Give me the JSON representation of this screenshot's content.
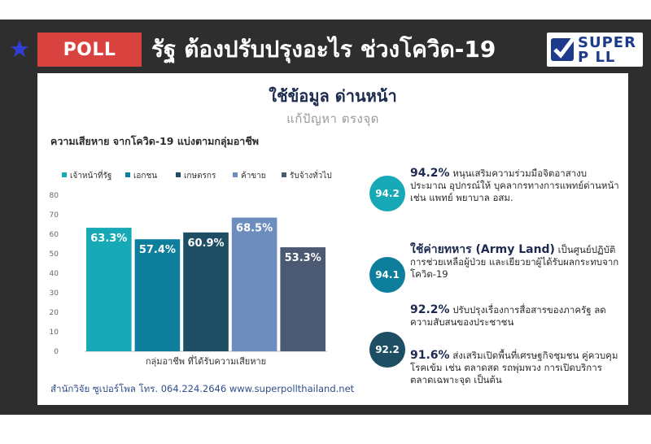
{
  "header": {
    "badge": "POLL",
    "headline": "รัฐ ต้องปรับปรุงอะไร ช่วงโควิด-19",
    "logo_top": "SUPER",
    "logo_bottom": "P LL"
  },
  "panel": {
    "title": "ใช้ข้อมูล ด่านหน้า",
    "subtitle": "แก้ปัญหา ตรงจุด",
    "chart_title": "ความเสียหาย จากโควิด-19 แบ่งตามกลุ่มอาชีพ",
    "source": "สำนักวิจัย ซูเปอร์โพล โทร. 064.224.2646  www.superpollthailand.net"
  },
  "chart_data": {
    "type": "bar",
    "title": "ความเสียหาย จากโควิด-19 แบ่งตามกลุ่มอาชีพ",
    "xlabel": "กลุ่มอาชีพ ที่ได้รับความเสียหาย",
    "ylabel": "",
    "ylim": [
      0,
      80
    ],
    "yticks": [
      0,
      10,
      20,
      30,
      40,
      50,
      60,
      70,
      80
    ],
    "grid": false,
    "legend_position": "top",
    "series": [
      {
        "name": "เจ้าหน้าที่รัฐ",
        "value": 63.3,
        "label": "63.3%",
        "color": "#17a9b5"
      },
      {
        "name": "เอกชน",
        "value": 57.4,
        "label": "57.4%",
        "color": "#0d7f9c"
      },
      {
        "name": "เกษตรกร",
        "value": 60.9,
        "label": "60.9%",
        "color": "#1d4e63"
      },
      {
        "name": "ค้าขาย",
        "value": 68.5,
        "label": "68.5%",
        "color": "#6d8dbe"
      },
      {
        "name": "รับจ้างทั่วไป",
        "value": 53.3,
        "label": "53.3%",
        "color": "#4b5a72"
      }
    ]
  },
  "stats": [
    {
      "badge": "94.2",
      "badge_color": "#17a9b5",
      "pct": "94.2%",
      "text": " หนุนเสริมความร่วมมือจิตอาสางบประมาณ อุปกรณ์ให้ บุคลากรทางการแพทย์ด่านหน้า เช่น แพทย์ พยาบาล อสม."
    },
    {
      "badge": "94.1",
      "badge_color": "#0d7f9c",
      "pct": "ใช้ค่ายทหาร (Army Land)",
      "text": " เป็นศูนย์ปฏิบัติการช่วยเหลือผู้ป่วย และเยียวยาผู้ได้รับผลกระทบจากโควิด-19"
    },
    {
      "badge": "92.2",
      "badge_color": "#1d4e63",
      "pct": "92.2%",
      "text": " ปรับปรุงเรื่องการสื่อสารของภาครัฐ ลดความสับสนของประชาชน",
      "pct2": "91.6%",
      "text2": " ส่งเสริมเปิดพื้นที่เศรษฐกิจชุมชน คู่ควบคุมโรคเข้ม เช่น ตลาดสด รถพุ่มพวง การเปิดบริการตลาดเฉพาะจุด เป็นต้น"
    }
  ],
  "icons": [
    "star-icon",
    "check-icon"
  ]
}
